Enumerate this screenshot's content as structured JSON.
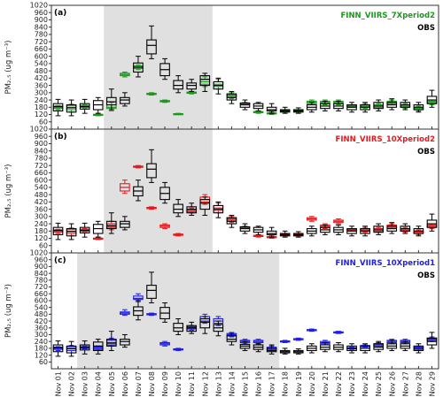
{
  "x_tick_labels": [
    "Nov 01",
    "Nov 02",
    "Nov 03",
    "Nov 04",
    "Nov 05",
    "Nov 06",
    "Nov 07",
    "Nov 08",
    "Nov 09",
    "Nov 10",
    "Nov 11",
    "Nov 12",
    "Nov 13",
    "Nov 14",
    "Nov 15",
    "Nov 16",
    "Nov 17",
    "Nov 18",
    "Nov 19",
    "Nov 20",
    "Nov 21",
    "Nov 22",
    "Nov 23",
    "Nov 24",
    "Nov 25",
    "Nov 26",
    "Nov 27",
    "Nov 28",
    "Nov 29"
  ],
  "y_tick_labels": [
    "60",
    "120",
    "180",
    "240",
    "300",
    "360",
    "420",
    "480",
    "540",
    "600",
    "660",
    "720",
    "780",
    "840",
    "900",
    "960",
    "1020"
  ],
  "ylabel": "PM₂.₅ (ug m⁻³)",
  "colors": {
    "obs": "#000000",
    "period2_7x": "#1a9a1a",
    "period2_10x": "#e8191d",
    "period1_10x": "#1f1fe6",
    "shade": "#e0e0e0"
  },
  "chart_data": [
    {
      "type": "box",
      "panel": "(a)",
      "ylim": [
        0,
        1020
      ],
      "shaded_days": [
        "Nov 05",
        "Nov 12"
      ],
      "legend": [
        "FINN_VIIRS_7Xperiod2",
        "OBS"
      ],
      "legend_position": "top-right",
      "model_color": "#1a9a1a",
      "obs": [
        [
          110,
          150,
          185,
          210,
          245
        ],
        [
          110,
          140,
          175,
          200,
          240
        ],
        [
          130,
          165,
          185,
          210,
          245
        ],
        [
          130,
          160,
          200,
          235,
          260
        ],
        [
          160,
          200,
          225,
          260,
          330
        ],
        [
          190,
          210,
          240,
          260,
          300
        ],
        [
          430,
          470,
          510,
          545,
          600
        ],
        [
          580,
          620,
          690,
          735,
          850
        ],
        [
          410,
          440,
          490,
          540,
          580
        ],
        [
          300,
          330,
          360,
          400,
          440
        ],
        [
          310,
          330,
          360,
          380,
          410
        ],
        [
          310,
          360,
          410,
          440,
          460
        ],
        [
          290,
          330,
          360,
          390,
          420
        ],
        [
          210,
          240,
          260,
          290,
          310
        ],
        [
          160,
          180,
          200,
          215,
          240
        ],
        [
          150,
          170,
          190,
          210,
          220
        ],
        [
          130,
          150,
          160,
          180,
          210
        ],
        [
          130,
          140,
          150,
          160,
          180
        ],
        [
          130,
          140,
          150,
          160,
          175
        ],
        [
          140,
          160,
          180,
          200,
          220
        ],
        [
          150,
          170,
          190,
          210,
          230
        ],
        [
          150,
          170,
          190,
          210,
          230
        ],
        [
          140,
          160,
          180,
          200,
          220
        ],
        [
          140,
          160,
          180,
          200,
          220
        ],
        [
          150,
          170,
          190,
          220,
          240
        ],
        [
          160,
          180,
          200,
          220,
          250
        ],
        [
          160,
          180,
          200,
          220,
          240
        ],
        [
          140,
          160,
          180,
          200,
          220
        ],
        [
          180,
          210,
          240,
          270,
          320
        ]
      ],
      "model": [
        [
          160,
          170,
          180,
          190,
          195
        ],
        [
          140,
          160,
          180,
          195,
          205
        ],
        [
          175,
          180,
          190,
          195,
          200
        ],
        [
          110,
          118,
          120,
          122,
          130
        ],
        [
          150,
          170,
          180,
          200,
          220
        ],
        [
          430,
          440,
          450,
          460,
          470
        ],
        [
          490,
          500,
          510,
          520,
          530
        ],
        [
          280,
          285,
          290,
          295,
          300
        ],
        [
          220,
          225,
          230,
          235,
          240
        ],
        [
          120,
          123,
          125,
          127,
          130
        ],
        [
          290,
          295,
          300,
          305,
          310
        ],
        [
          350,
          370,
          390,
          410,
          430
        ],
        [
          330,
          350,
          370,
          390,
          410
        ],
        [
          250,
          270,
          280,
          290,
          300
        ],
        [
          200,
          205,
          210,
          215,
          220
        ],
        [
          130,
          135,
          140,
          145,
          150
        ],
        [
          120,
          125,
          130,
          135,
          140
        ],
        [
          140,
          145,
          150,
          155,
          160
        ],
        [
          140,
          145,
          150,
          155,
          160
        ],
        [
          200,
          210,
          220,
          230,
          240
        ],
        [
          200,
          210,
          220,
          230,
          240
        ],
        [
          200,
          210,
          220,
          230,
          240
        ],
        [
          180,
          185,
          190,
          195,
          200
        ],
        [
          170,
          180,
          190,
          200,
          210
        ],
        [
          170,
          180,
          190,
          200,
          210
        ],
        [
          200,
          210,
          220,
          230,
          240
        ],
        [
          170,
          180,
          190,
          200,
          210
        ],
        [
          150,
          160,
          170,
          180,
          190
        ],
        [
          200,
          210,
          220,
          230,
          240
        ]
      ]
    },
    {
      "type": "box",
      "panel": "(b)",
      "ylim": [
        0,
        1020
      ],
      "shaded_days": [
        "Nov 05",
        "Nov 12"
      ],
      "legend": [
        "FINN_VIIRS_10Xperiod2",
        "OBS"
      ],
      "legend_position": "top-right",
      "model_color": "#e8191d",
      "obs": [
        [
          110,
          150,
          185,
          210,
          245
        ],
        [
          110,
          140,
          175,
          200,
          240
        ],
        [
          130,
          165,
          185,
          210,
          245
        ],
        [
          130,
          160,
          200,
          235,
          260
        ],
        [
          160,
          200,
          225,
          260,
          330
        ],
        [
          190,
          210,
          240,
          260,
          300
        ],
        [
          430,
          470,
          510,
          545,
          600
        ],
        [
          580,
          620,
          690,
          735,
          850
        ],
        [
          410,
          440,
          490,
          540,
          580
        ],
        [
          300,
          330,
          360,
          400,
          440
        ],
        [
          310,
          330,
          360,
          380,
          410
        ],
        [
          310,
          360,
          410,
          440,
          460
        ],
        [
          290,
          330,
          360,
          390,
          420
        ],
        [
          210,
          240,
          260,
          290,
          310
        ],
        [
          160,
          180,
          200,
          215,
          240
        ],
        [
          150,
          170,
          190,
          210,
          220
        ],
        [
          130,
          150,
          160,
          180,
          210
        ],
        [
          130,
          140,
          150,
          160,
          180
        ],
        [
          130,
          140,
          150,
          160,
          175
        ],
        [
          140,
          160,
          180,
          200,
          220
        ],
        [
          150,
          170,
          190,
          210,
          230
        ],
        [
          150,
          170,
          190,
          210,
          230
        ],
        [
          140,
          160,
          180,
          200,
          220
        ],
        [
          140,
          160,
          180,
          200,
          220
        ],
        [
          150,
          170,
          190,
          220,
          240
        ],
        [
          160,
          180,
          200,
          220,
          250
        ],
        [
          160,
          180,
          200,
          220,
          240
        ],
        [
          140,
          160,
          180,
          200,
          220
        ],
        [
          180,
          210,
          240,
          270,
          320
        ]
      ],
      "model": [
        [
          160,
          170,
          180,
          190,
          195
        ],
        [
          140,
          160,
          180,
          195,
          205
        ],
        [
          175,
          180,
          190,
          195,
          200
        ],
        [
          110,
          118,
          120,
          122,
          130
        ],
        [
          190,
          210,
          220,
          240,
          260
        ],
        [
          490,
          510,
          540,
          570,
          600
        ],
        [
          700,
          705,
          710,
          715,
          720
        ],
        [
          360,
          365,
          370,
          375,
          380
        ],
        [
          200,
          210,
          220,
          230,
          240
        ],
        [
          140,
          145,
          150,
          155,
          160
        ],
        [
          330,
          340,
          350,
          360,
          370
        ],
        [
          400,
          420,
          440,
          460,
          480
        ],
        [
          330,
          350,
          370,
          390,
          410
        ],
        [
          250,
          270,
          280,
          290,
          300
        ],
        [
          200,
          205,
          210,
          215,
          220
        ],
        [
          130,
          135,
          140,
          145,
          150
        ],
        [
          120,
          125,
          130,
          135,
          140
        ],
        [
          140,
          145,
          150,
          155,
          160
        ],
        [
          140,
          145,
          150,
          155,
          160
        ],
        [
          260,
          270,
          280,
          290,
          300
        ],
        [
          200,
          210,
          220,
          230,
          240
        ],
        [
          240,
          250,
          260,
          270,
          280
        ],
        [
          180,
          185,
          190,
          195,
          200
        ],
        [
          170,
          180,
          190,
          200,
          210
        ],
        [
          170,
          180,
          190,
          200,
          210
        ],
        [
          200,
          210,
          220,
          230,
          240
        ],
        [
          170,
          180,
          190,
          200,
          210
        ],
        [
          150,
          160,
          170,
          180,
          190
        ],
        [
          200,
          210,
          220,
          230,
          240
        ]
      ]
    },
    {
      "type": "box",
      "panel": "(c)",
      "ylim": [
        0,
        1020
      ],
      "shaded_days": [
        "Nov 03",
        "Nov 17"
      ],
      "legend": [
        "FINN_VIIRS_10Xperiod1",
        "OBS"
      ],
      "legend_position": "top-right",
      "model_color": "#1f1fe6",
      "obs": [
        [
          110,
          150,
          185,
          210,
          245
        ],
        [
          110,
          140,
          175,
          200,
          240
        ],
        [
          130,
          165,
          185,
          210,
          245
        ],
        [
          130,
          160,
          200,
          235,
          260
        ],
        [
          160,
          200,
          225,
          260,
          330
        ],
        [
          190,
          210,
          240,
          260,
          300
        ],
        [
          430,
          470,
          510,
          545,
          600
        ],
        [
          580,
          620,
          690,
          735,
          850
        ],
        [
          410,
          440,
          490,
          540,
          580
        ],
        [
          300,
          330,
          360,
          400,
          440
        ],
        [
          310,
          330,
          360,
          380,
          410
        ],
        [
          310,
          360,
          410,
          440,
          460
        ],
        [
          290,
          330,
          360,
          390,
          420
        ],
        [
          210,
          240,
          260,
          290,
          310
        ],
        [
          160,
          180,
          200,
          215,
          240
        ],
        [
          150,
          170,
          190,
          210,
          220
        ],
        [
          130,
          150,
          160,
          180,
          210
        ],
        [
          130,
          140,
          150,
          160,
          180
        ],
        [
          130,
          140,
          150,
          160,
          175
        ],
        [
          140,
          160,
          180,
          200,
          220
        ],
        [
          150,
          170,
          190,
          210,
          230
        ],
        [
          150,
          170,
          190,
          210,
          230
        ],
        [
          140,
          160,
          180,
          200,
          220
        ],
        [
          140,
          160,
          180,
          200,
          220
        ],
        [
          150,
          170,
          190,
          220,
          240
        ],
        [
          160,
          180,
          200,
          220,
          250
        ],
        [
          160,
          180,
          200,
          220,
          240
        ],
        [
          140,
          160,
          180,
          200,
          220
        ],
        [
          180,
          210,
          240,
          270,
          320
        ]
      ],
      "model": [
        [
          160,
          170,
          180,
          190,
          195
        ],
        [
          140,
          160,
          180,
          195,
          205
        ],
        [
          175,
          180,
          190,
          195,
          200
        ],
        [
          160,
          170,
          180,
          190,
          200
        ],
        [
          200,
          210,
          230,
          250,
          270
        ],
        [
          470,
          480,
          490,
          500,
          520
        ],
        [
          590,
          610,
          620,
          640,
          660
        ],
        [
          470,
          475,
          480,
          485,
          490
        ],
        [
          200,
          210,
          220,
          230,
          240
        ],
        [
          160,
          165,
          170,
          175,
          180
        ],
        [
          340,
          350,
          360,
          370,
          380
        ],
        [
          400,
          420,
          440,
          460,
          480
        ],
        [
          380,
          400,
          420,
          440,
          460
        ],
        [
          280,
          290,
          300,
          310,
          320
        ],
        [
          220,
          230,
          240,
          250,
          260
        ],
        [
          220,
          230,
          240,
          250,
          260
        ],
        [
          160,
          170,
          180,
          190,
          200
        ],
        [
          230,
          235,
          240,
          245,
          250
        ],
        [
          250,
          255,
          260,
          265,
          270
        ],
        [
          330,
          335,
          340,
          345,
          350
        ],
        [
          210,
          220,
          230,
          240,
          250
        ],
        [
          310,
          315,
          320,
          325,
          330
        ],
        [
          170,
          175,
          180,
          185,
          190
        ],
        [
          190,
          195,
          200,
          205,
          210
        ],
        [
          190,
          200,
          210,
          220,
          230
        ],
        [
          220,
          230,
          240,
          250,
          260
        ],
        [
          220,
          230,
          240,
          250,
          260
        ],
        [
          160,
          170,
          180,
          190,
          200
        ],
        [
          240,
          250,
          260,
          270,
          280
        ]
      ]
    }
  ]
}
